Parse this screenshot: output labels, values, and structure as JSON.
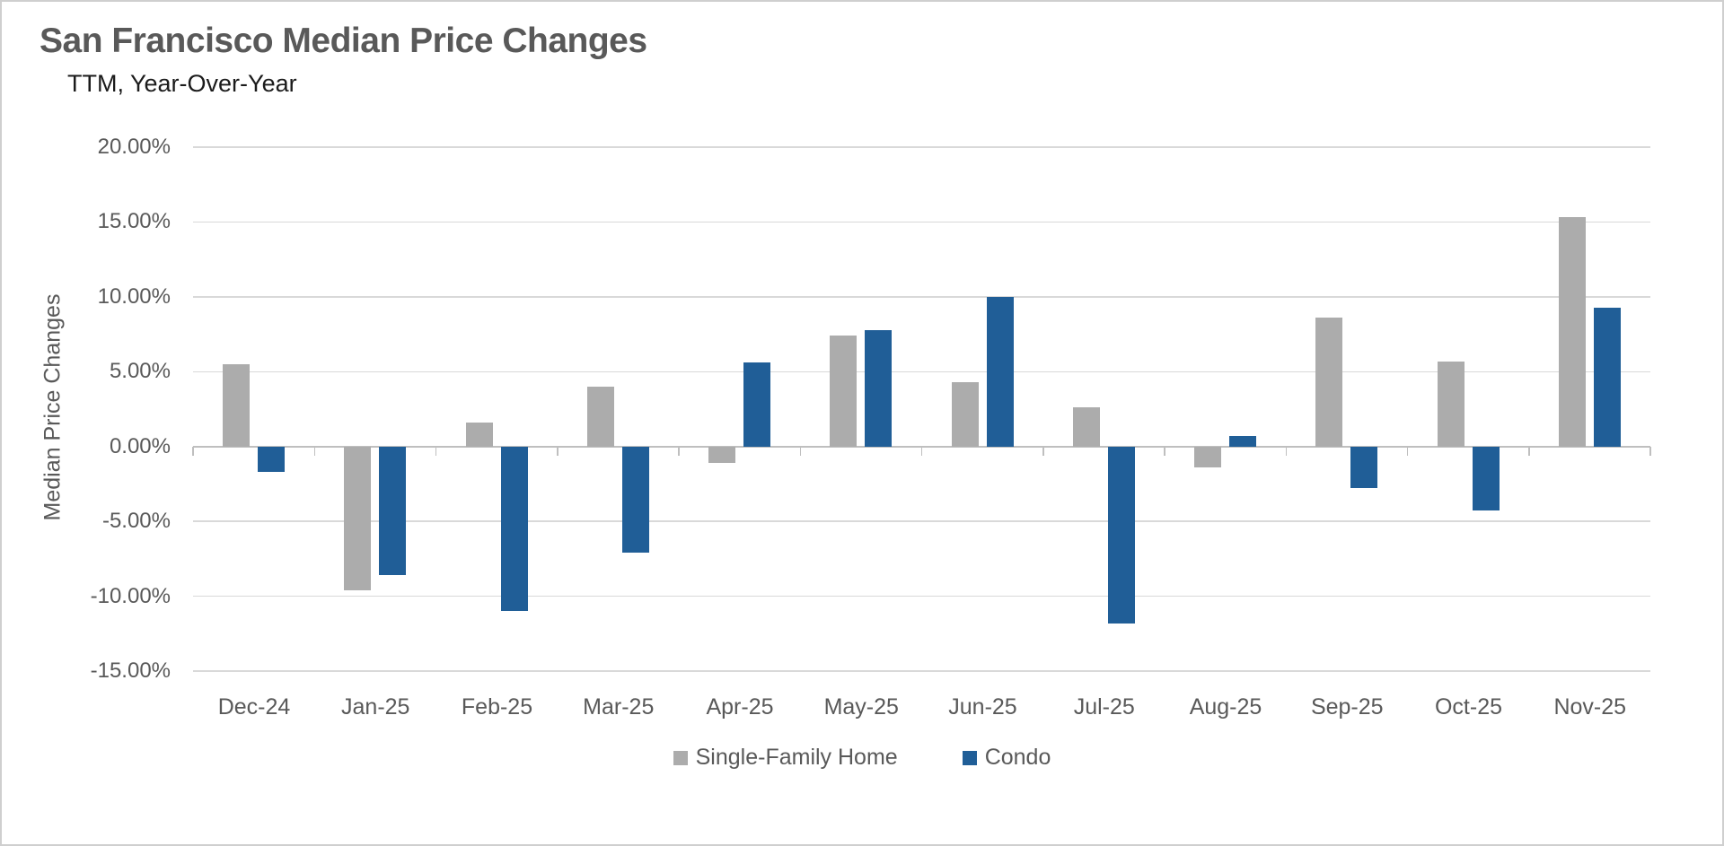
{
  "header": {
    "title": "San Francisco Median Price Changes",
    "subtitle": "TTM, Year-Over-Year"
  },
  "chart_data": {
    "type": "bar",
    "title": "San Francisco Median Price Changes",
    "subtitle": "TTM, Year-Over-Year",
    "xlabel": "",
    "ylabel": "Median Price Changes",
    "categories": [
      "Dec-24",
      "Jan-25",
      "Feb-25",
      "Mar-25",
      "Apr-25",
      "May-25",
      "Jun-25",
      "Jul-25",
      "Aug-25",
      "Sep-25",
      "Oct-25",
      "Nov-25"
    ],
    "series": [
      {
        "name": "Single-Family Home",
        "color": "#acacac",
        "values": [
          5.5,
          -9.6,
          1.6,
          4.0,
          -1.1,
          7.4,
          4.3,
          2.6,
          -1.4,
          8.6,
          5.7,
          15.3
        ]
      },
      {
        "name": "Condo",
        "color": "#205e97",
        "values": [
          -1.7,
          -8.6,
          -11.0,
          -7.1,
          5.6,
          7.8,
          10.0,
          -11.8,
          0.7,
          -2.8,
          -4.3,
          9.3
        ]
      }
    ],
    "ylim": [
      -15,
      20
    ],
    "yticks": [
      {
        "value": 20,
        "label": "20.00%"
      },
      {
        "value": 15,
        "label": "15.00%"
      },
      {
        "value": 10,
        "label": "10.00%"
      },
      {
        "value": 5,
        "label": "5.00%"
      },
      {
        "value": 0,
        "label": "0.00%"
      },
      {
        "value": -5,
        "label": "-5.00%"
      },
      {
        "value": -10,
        "label": "-10.00%"
      },
      {
        "value": -15,
        "label": "-15.00%"
      }
    ],
    "grid": true,
    "legend_position": "bottom",
    "units": "percent"
  },
  "colors": {
    "title_text": "#595959",
    "subtitle_text": "#1b1b1b",
    "axis_text": "#595959",
    "gridline": "#d9d9d9",
    "axis_line": "#bfbfbf",
    "single_family_bar": "#acacac",
    "condo_bar": "#205e97",
    "background": "#ffffff",
    "border": "#cfcfcf"
  }
}
